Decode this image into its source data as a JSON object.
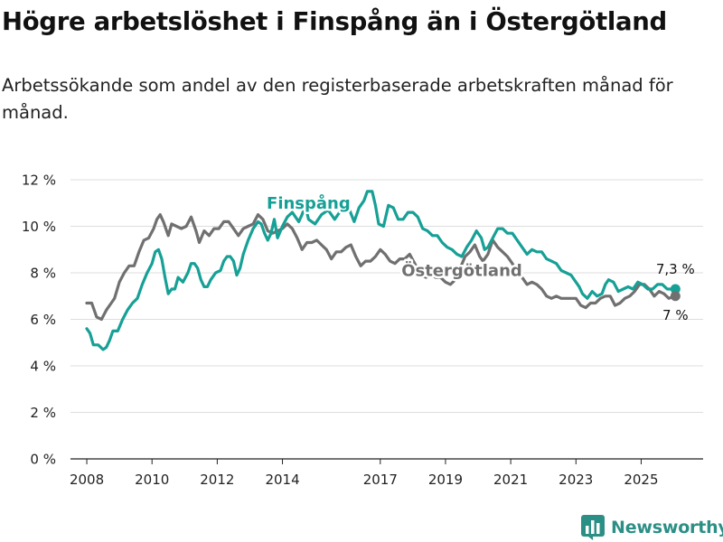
{
  "header": {
    "title": "Högre arbetslöshet i Finspång än i Östergötland",
    "subtitle": "Arbetssökande som andel av den registerbaserade arbetskraften månad för månad."
  },
  "brand": {
    "name": "Newsworthy",
    "icon": "bar-chart-icon",
    "color": "#2c8f86"
  },
  "colors": {
    "finspang": "#16a096",
    "ostergotland": "#707070",
    "grid": "#dddddd",
    "text": "#222222"
  },
  "chart_data": {
    "type": "line",
    "title": "Högre arbetslöshet i Finspång än i Östergötland",
    "subtitle": "Arbetssökande som andel av den registerbaserade arbetskraften månad för månad.",
    "xlabel": "",
    "ylabel": "",
    "ylim": [
      0,
      12
    ],
    "xlim": [
      2007.5,
      2026.9
    ],
    "y_ticks": [
      0,
      2,
      4,
      6,
      8,
      10,
      12
    ],
    "y_tick_labels": [
      "0 %",
      "2 %",
      "4 %",
      "6 %",
      "8 %",
      "10 %",
      "12 %"
    ],
    "x_ticks": [
      2008,
      2010,
      2012,
      2014,
      2017,
      2019,
      2021,
      2023,
      2025
    ],
    "x_tick_labels": [
      "2008",
      "2010",
      "2012",
      "2014",
      "2017",
      "2019",
      "2021",
      "2023",
      "2025"
    ],
    "grid": true,
    "series": [
      {
        "name": "Finspång",
        "color": "#16a096",
        "end_label": "7,3 %",
        "points": [
          [
            2008.0,
            5.6
          ],
          [
            2008.1,
            5.4
          ],
          [
            2008.2,
            4.9
          ],
          [
            2008.35,
            4.9
          ],
          [
            2008.5,
            4.7
          ],
          [
            2008.6,
            4.8
          ],
          [
            2008.7,
            5.1
          ],
          [
            2008.8,
            5.5
          ],
          [
            2008.95,
            5.5
          ],
          [
            2009.1,
            6.0
          ],
          [
            2009.25,
            6.4
          ],
          [
            2009.4,
            6.7
          ],
          [
            2009.55,
            6.9
          ],
          [
            2009.7,
            7.5
          ],
          [
            2009.85,
            8.0
          ],
          [
            2010.0,
            8.4
          ],
          [
            2010.1,
            8.9
          ],
          [
            2010.2,
            9.0
          ],
          [
            2010.3,
            8.6
          ],
          [
            2010.4,
            7.8
          ],
          [
            2010.5,
            7.1
          ],
          [
            2010.6,
            7.3
          ],
          [
            2010.7,
            7.3
          ],
          [
            2010.8,
            7.8
          ],
          [
            2010.95,
            7.6
          ],
          [
            2011.1,
            8.0
          ],
          [
            2011.2,
            8.4
          ],
          [
            2011.3,
            8.4
          ],
          [
            2011.4,
            8.2
          ],
          [
            2011.5,
            7.7
          ],
          [
            2011.6,
            7.4
          ],
          [
            2011.7,
            7.4
          ],
          [
            2011.8,
            7.7
          ],
          [
            2011.95,
            8.0
          ],
          [
            2012.1,
            8.1
          ],
          [
            2012.2,
            8.5
          ],
          [
            2012.3,
            8.7
          ],
          [
            2012.4,
            8.7
          ],
          [
            2012.5,
            8.5
          ],
          [
            2012.6,
            7.9
          ],
          [
            2012.7,
            8.2
          ],
          [
            2012.8,
            8.8
          ],
          [
            2012.95,
            9.4
          ],
          [
            2013.1,
            9.9
          ],
          [
            2013.25,
            10.2
          ],
          [
            2013.35,
            10.1
          ],
          [
            2013.45,
            9.7
          ],
          [
            2013.55,
            9.4
          ],
          [
            2013.65,
            9.7
          ],
          [
            2013.75,
            10.3
          ],
          [
            2013.85,
            9.5
          ],
          [
            2014.0,
            10.0
          ],
          [
            2014.15,
            10.4
          ],
          [
            2014.3,
            10.6
          ],
          [
            2014.5,
            10.2
          ],
          [
            2014.6,
            10.5
          ],
          [
            2014.7,
            10.9
          ],
          [
            2014.8,
            10.3
          ],
          [
            2015.0,
            10.1
          ],
          [
            2015.2,
            10.5
          ],
          [
            2015.4,
            10.7
          ],
          [
            2015.6,
            10.3
          ],
          [
            2015.8,
            10.7
          ],
          [
            2016.0,
            10.9
          ],
          [
            2016.2,
            10.2
          ],
          [
            2016.35,
            10.8
          ],
          [
            2016.5,
            11.1
          ],
          [
            2016.6,
            11.5
          ],
          [
            2016.75,
            11.5
          ],
          [
            2016.85,
            10.9
          ],
          [
            2016.95,
            10.1
          ],
          [
            2017.1,
            10.0
          ],
          [
            2017.25,
            10.9
          ],
          [
            2017.4,
            10.8
          ],
          [
            2017.55,
            10.3
          ],
          [
            2017.7,
            10.3
          ],
          [
            2017.85,
            10.6
          ],
          [
            2018.0,
            10.6
          ],
          [
            2018.15,
            10.4
          ],
          [
            2018.3,
            9.9
          ],
          [
            2018.45,
            9.8
          ],
          [
            2018.6,
            9.6
          ],
          [
            2018.75,
            9.6
          ],
          [
            2018.9,
            9.3
          ],
          [
            2019.05,
            9.1
          ],
          [
            2019.2,
            9.0
          ],
          [
            2019.35,
            8.8
          ],
          [
            2019.5,
            8.7
          ],
          [
            2019.65,
            9.1
          ],
          [
            2019.8,
            9.4
          ],
          [
            2019.95,
            9.8
          ],
          [
            2020.1,
            9.5
          ],
          [
            2020.2,
            9.0
          ],
          [
            2020.3,
            9.1
          ],
          [
            2020.45,
            9.5
          ],
          [
            2020.6,
            9.9
          ],
          [
            2020.75,
            9.9
          ],
          [
            2020.9,
            9.7
          ],
          [
            2021.05,
            9.7
          ],
          [
            2021.2,
            9.4
          ],
          [
            2021.35,
            9.1
          ],
          [
            2021.5,
            8.8
          ],
          [
            2021.65,
            9.0
          ],
          [
            2021.8,
            8.9
          ],
          [
            2021.95,
            8.9
          ],
          [
            2022.1,
            8.6
          ],
          [
            2022.25,
            8.5
          ],
          [
            2022.4,
            8.4
          ],
          [
            2022.55,
            8.1
          ],
          [
            2022.7,
            8.0
          ],
          [
            2022.85,
            7.9
          ],
          [
            2023.0,
            7.6
          ],
          [
            2023.1,
            7.4
          ],
          [
            2023.2,
            7.1
          ],
          [
            2023.35,
            6.9
          ],
          [
            2023.5,
            7.2
          ],
          [
            2023.65,
            7.0
          ],
          [
            2023.8,
            7.1
          ],
          [
            2023.9,
            7.5
          ],
          [
            2024.0,
            7.7
          ],
          [
            2024.15,
            7.6
          ],
          [
            2024.3,
            7.2
          ],
          [
            2024.45,
            7.3
          ],
          [
            2024.6,
            7.4
          ],
          [
            2024.75,
            7.3
          ],
          [
            2024.9,
            7.6
          ],
          [
            2025.05,
            7.5
          ],
          [
            2025.2,
            7.3
          ],
          [
            2025.35,
            7.3
          ],
          [
            2025.5,
            7.5
          ],
          [
            2025.65,
            7.5
          ],
          [
            2025.8,
            7.3
          ],
          [
            2025.95,
            7.3
          ],
          [
            2026.05,
            7.3
          ]
        ]
      },
      {
        "name": "Östergötland",
        "color": "#707070",
        "end_label": "7 %",
        "points": [
          [
            2008.0,
            6.7
          ],
          [
            2008.15,
            6.7
          ],
          [
            2008.3,
            6.1
          ],
          [
            2008.45,
            6.0
          ],
          [
            2008.6,
            6.4
          ],
          [
            2008.75,
            6.7
          ],
          [
            2008.85,
            6.9
          ],
          [
            2009.0,
            7.6
          ],
          [
            2009.15,
            8.0
          ],
          [
            2009.3,
            8.3
          ],
          [
            2009.45,
            8.3
          ],
          [
            2009.6,
            8.9
          ],
          [
            2009.75,
            9.4
          ],
          [
            2009.9,
            9.5
          ],
          [
            2010.05,
            9.9
          ],
          [
            2010.15,
            10.3
          ],
          [
            2010.25,
            10.5
          ],
          [
            2010.35,
            10.2
          ],
          [
            2010.5,
            9.6
          ],
          [
            2010.6,
            10.1
          ],
          [
            2010.75,
            10.0
          ],
          [
            2010.9,
            9.9
          ],
          [
            2011.05,
            10.0
          ],
          [
            2011.2,
            10.4
          ],
          [
            2011.35,
            9.8
          ],
          [
            2011.45,
            9.3
          ],
          [
            2011.6,
            9.8
          ],
          [
            2011.75,
            9.6
          ],
          [
            2011.9,
            9.9
          ],
          [
            2012.05,
            9.9
          ],
          [
            2012.2,
            10.2
          ],
          [
            2012.35,
            10.2
          ],
          [
            2012.5,
            9.9
          ],
          [
            2012.65,
            9.6
          ],
          [
            2012.8,
            9.9
          ],
          [
            2012.95,
            10.0
          ],
          [
            2013.1,
            10.1
          ],
          [
            2013.25,
            10.5
          ],
          [
            2013.4,
            10.3
          ],
          [
            2013.55,
            9.8
          ],
          [
            2013.7,
            9.7
          ],
          [
            2013.85,
            9.8
          ],
          [
            2014.0,
            9.9
          ],
          [
            2014.15,
            10.1
          ],
          [
            2014.3,
            9.9
          ],
          [
            2014.45,
            9.5
          ],
          [
            2014.6,
            9.0
          ],
          [
            2014.75,
            9.3
          ],
          [
            2014.9,
            9.3
          ],
          [
            2015.05,
            9.4
          ],
          [
            2015.2,
            9.2
          ],
          [
            2015.35,
            9.0
          ],
          [
            2015.5,
            8.6
          ],
          [
            2015.65,
            8.9
          ],
          [
            2015.8,
            8.9
          ],
          [
            2015.95,
            9.1
          ],
          [
            2016.1,
            9.2
          ],
          [
            2016.25,
            8.7
          ],
          [
            2016.4,
            8.3
          ],
          [
            2016.55,
            8.5
          ],
          [
            2016.7,
            8.5
          ],
          [
            2016.85,
            8.7
          ],
          [
            2017.0,
            9.0
          ],
          [
            2017.15,
            8.8
          ],
          [
            2017.3,
            8.5
          ],
          [
            2017.45,
            8.4
          ],
          [
            2017.6,
            8.6
          ],
          [
            2017.75,
            8.6
          ],
          [
            2017.9,
            8.8
          ],
          [
            2018.25,
            7.9
          ],
          [
            2018.4,
            7.8
          ],
          [
            2018.55,
            7.9
          ],
          [
            2018.7,
            7.8
          ],
          [
            2018.85,
            7.8
          ],
          [
            2019.0,
            7.6
          ],
          [
            2019.15,
            7.5
          ],
          [
            2019.3,
            7.7
          ],
          [
            2019.45,
            8.2
          ],
          [
            2019.6,
            8.7
          ],
          [
            2019.75,
            8.9
          ],
          [
            2019.9,
            9.2
          ],
          [
            2020.05,
            8.7
          ],
          [
            2020.15,
            8.5
          ],
          [
            2020.3,
            8.8
          ],
          [
            2020.45,
            9.4
          ],
          [
            2020.6,
            9.1
          ],
          [
            2020.75,
            8.9
          ],
          [
            2020.9,
            8.7
          ],
          [
            2021.05,
            8.4
          ],
          [
            2021.2,
            8.0
          ],
          [
            2021.35,
            7.8
          ],
          [
            2021.5,
            7.5
          ],
          [
            2021.65,
            7.6
          ],
          [
            2021.8,
            7.5
          ],
          [
            2021.95,
            7.3
          ],
          [
            2022.1,
            7.0
          ],
          [
            2022.25,
            6.9
          ],
          [
            2022.4,
            7.0
          ],
          [
            2022.55,
            6.9
          ],
          [
            2022.7,
            6.9
          ],
          [
            2022.85,
            6.9
          ],
          [
            2023.0,
            6.9
          ],
          [
            2023.15,
            6.6
          ],
          [
            2023.3,
            6.5
          ],
          [
            2023.45,
            6.7
          ],
          [
            2023.6,
            6.7
          ],
          [
            2023.75,
            6.9
          ],
          [
            2023.9,
            7.0
          ],
          [
            2024.05,
            7.0
          ],
          [
            2024.2,
            6.6
          ],
          [
            2024.35,
            6.7
          ],
          [
            2024.5,
            6.9
          ],
          [
            2024.65,
            7.0
          ],
          [
            2024.8,
            7.2
          ],
          [
            2024.95,
            7.5
          ],
          [
            2025.1,
            7.5
          ],
          [
            2025.25,
            7.3
          ],
          [
            2025.4,
            7.0
          ],
          [
            2025.55,
            7.2
          ],
          [
            2025.7,
            7.1
          ],
          [
            2025.85,
            6.9
          ],
          [
            2026.05,
            7.0
          ]
        ]
      }
    ],
    "annotations": [
      {
        "text": "Finspång",
        "series": "Finspång",
        "anchor_x": 2014.8,
        "anchor_y": 11.0
      },
      {
        "text": "Östergötland",
        "series": "Östergötland",
        "anchor_x": 2019.5,
        "anchor_y": 8.1
      }
    ]
  }
}
